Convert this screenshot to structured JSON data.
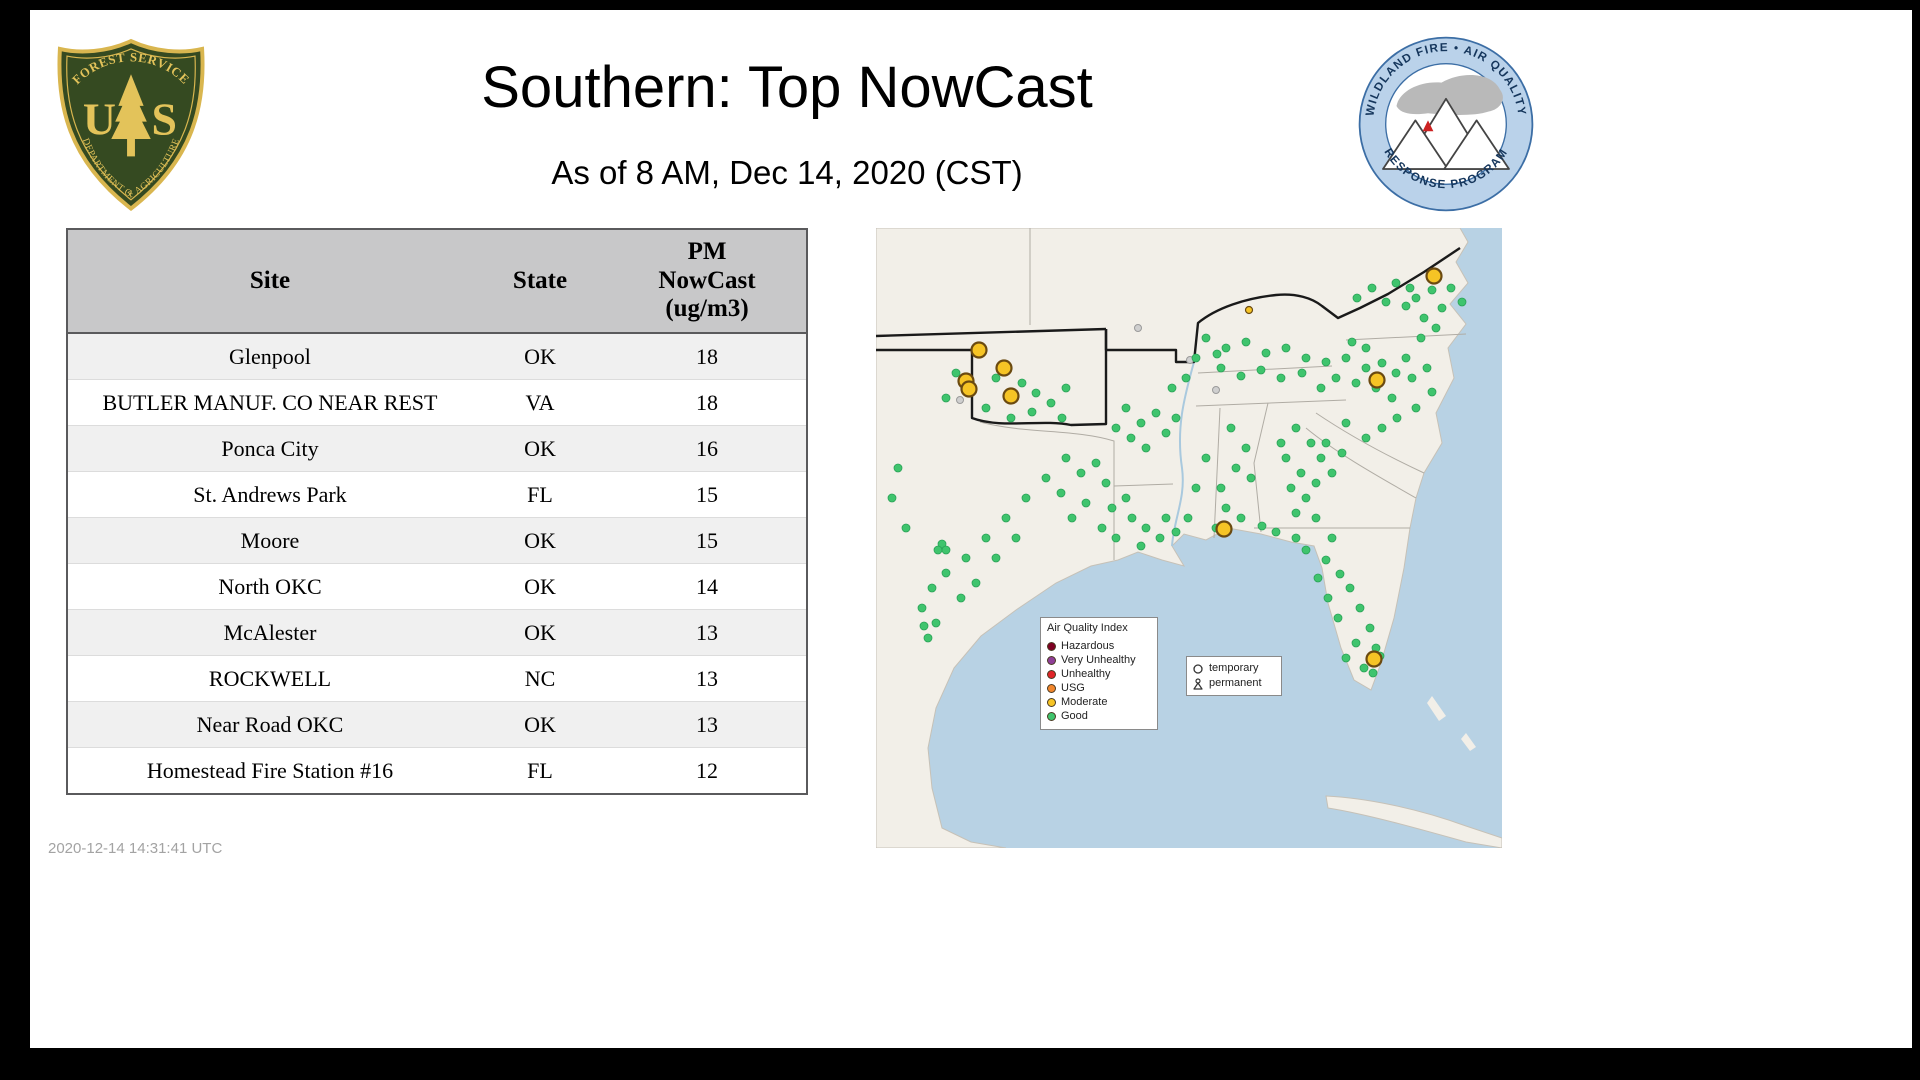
{
  "header": {
    "title": "Southern: Top NowCast",
    "subtitle": "As of  8 AM, Dec 14, 2020 (CST)"
  },
  "logos": {
    "forest_service": {
      "arc_top": "FOREST SERVICE",
      "letter_u": "U",
      "letter_s": "S",
      "arc_bottom": "DEPARTMENT OF AGRICULTURE"
    },
    "wfaqrp": {
      "arc_top": "WILDLAND FIRE • AIR QUALITY",
      "arc_bottom": "RESPONSE PROGRAM"
    }
  },
  "table": {
    "columns": [
      "Site",
      "State",
      "PM\nNowCast\n(ug/m3)"
    ],
    "rows": [
      {
        "site": "Glenpool",
        "state": "OK",
        "value": "18"
      },
      {
        "site": "BUTLER MANUF. CO NEAR REST",
        "state": "VA",
        "value": "18"
      },
      {
        "site": "Ponca City",
        "state": "OK",
        "value": "16"
      },
      {
        "site": "St. Andrews Park",
        "state": "FL",
        "value": "15"
      },
      {
        "site": "Moore",
        "state": "OK",
        "value": "15"
      },
      {
        "site": "North OKC",
        "state": "OK",
        "value": "14"
      },
      {
        "site": "McAlester",
        "state": "OK",
        "value": "13"
      },
      {
        "site": "ROCKWELL",
        "state": "NC",
        "value": "13"
      },
      {
        "site": "Near Road OKC",
        "state": "OK",
        "value": "13"
      },
      {
        "site": "Homestead Fire Station #16",
        "state": "FL",
        "value": "12"
      }
    ]
  },
  "map": {
    "legend": {
      "title": "Air Quality Index",
      "items": [
        {
          "label": "Hazardous",
          "color": "#7e0023"
        },
        {
          "label": "Very Unhealthy",
          "color": "#8f3f97"
        },
        {
          "label": "Unhealthy",
          "color": "#e02428"
        },
        {
          "label": "USG",
          "color": "#f2862c"
        },
        {
          "label": "Moderate",
          "color": "#f6c425"
        },
        {
          "label": "Good",
          "color": "#3fc46d"
        }
      ]
    },
    "marker_legend": {
      "temporary_label": "temporary",
      "permanent_label": "permanent"
    },
    "dot_colors": {
      "good": "#3fc46d",
      "moderate": "#f6c425",
      "inactive": "#cfcfcf"
    },
    "green_dots": [
      [
        520,
        55
      ],
      [
        540,
        70
      ],
      [
        556,
        62
      ],
      [
        566,
        80
      ],
      [
        548,
        90
      ],
      [
        530,
        78
      ],
      [
        575,
        60
      ],
      [
        586,
        74
      ],
      [
        510,
        74
      ],
      [
        496,
        60
      ],
      [
        481,
        70
      ],
      [
        560,
        100
      ],
      [
        545,
        110
      ],
      [
        534,
        60
      ],
      [
        470,
        130
      ],
      [
        490,
        140
      ],
      [
        506,
        135
      ],
      [
        520,
        145
      ],
      [
        536,
        150
      ],
      [
        480,
        155
      ],
      [
        500,
        160
      ],
      [
        516,
        170
      ],
      [
        460,
        150
      ],
      [
        445,
        160
      ],
      [
        530,
        130
      ],
      [
        551,
        140
      ],
      [
        490,
        120
      ],
      [
        476,
        114
      ],
      [
        556,
        164
      ],
      [
        540,
        180
      ],
      [
        521,
        190
      ],
      [
        506,
        200
      ],
      [
        490,
        210
      ],
      [
        470,
        195
      ],
      [
        330,
        110
      ],
      [
        350,
        120
      ],
      [
        370,
        114
      ],
      [
        390,
        125
      ],
      [
        410,
        120
      ],
      [
        430,
        130
      ],
      [
        345,
        140
      ],
      [
        365,
        148
      ],
      [
        385,
        142
      ],
      [
        405,
        150
      ],
      [
        426,
        145
      ],
      [
        310,
        150
      ],
      [
        296,
        160
      ],
      [
        450,
        134
      ],
      [
        320,
        130
      ],
      [
        341,
        126
      ],
      [
        420,
        200
      ],
      [
        435,
        215
      ],
      [
        445,
        230
      ],
      [
        425,
        245
      ],
      [
        410,
        230
      ],
      [
        440,
        255
      ],
      [
        456,
        245
      ],
      [
        430,
        270
      ],
      [
        415,
        260
      ],
      [
        450,
        215
      ],
      [
        466,
        225
      ],
      [
        405,
        215
      ],
      [
        420,
        285
      ],
      [
        440,
        290
      ],
      [
        355,
        200
      ],
      [
        370,
        220
      ],
      [
        360,
        240
      ],
      [
        345,
        260
      ],
      [
        375,
        250
      ],
      [
        350,
        280
      ],
      [
        365,
        290
      ],
      [
        330,
        230
      ],
      [
        320,
        260
      ],
      [
        340,
        300
      ],
      [
        312,
        290
      ],
      [
        430,
        322
      ],
      [
        450,
        332
      ],
      [
        464,
        346
      ],
      [
        474,
        360
      ],
      [
        484,
        380
      ],
      [
        494,
        400
      ],
      [
        500,
        420
      ],
      [
        480,
        415
      ],
      [
        462,
        390
      ],
      [
        452,
        370
      ],
      [
        442,
        350
      ],
      [
        470,
        430
      ],
      [
        488,
        440
      ],
      [
        456,
        310
      ],
      [
        420,
        310
      ],
      [
        400,
        304
      ],
      [
        386,
        298
      ],
      [
        504,
        428
      ],
      [
        497,
        445
      ],
      [
        256,
        290
      ],
      [
        270,
        300
      ],
      [
        284,
        310
      ],
      [
        300,
        304
      ],
      [
        265,
        318
      ],
      [
        240,
        310
      ],
      [
        226,
        300
      ],
      [
        290,
        290
      ],
      [
        250,
        270
      ],
      [
        236,
        280
      ],
      [
        250,
        180
      ],
      [
        265,
        195
      ],
      [
        280,
        185
      ],
      [
        255,
        210
      ],
      [
        270,
        220
      ],
      [
        240,
        200
      ],
      [
        290,
        205
      ],
      [
        300,
        190
      ],
      [
        80,
        145
      ],
      [
        120,
        150
      ],
      [
        146,
        155
      ],
      [
        160,
        165
      ],
      [
        110,
        180
      ],
      [
        135,
        190
      ],
      [
        156,
        184
      ],
      [
        175,
        175
      ],
      [
        190,
        160
      ],
      [
        95,
        160
      ],
      [
        70,
        170
      ],
      [
        186,
        190
      ],
      [
        190,
        230
      ],
      [
        205,
        245
      ],
      [
        185,
        265
      ],
      [
        210,
        275
      ],
      [
        196,
        290
      ],
      [
        170,
        250
      ],
      [
        150,
        270
      ],
      [
        130,
        290
      ],
      [
        110,
        310
      ],
      [
        90,
        330
      ],
      [
        70,
        345
      ],
      [
        56,
        360
      ],
      [
        46,
        380
      ],
      [
        60,
        395
      ],
      [
        66,
        316
      ],
      [
        62,
        322
      ],
      [
        70,
        322
      ],
      [
        100,
        355
      ],
      [
        85,
        370
      ],
      [
        120,
        330
      ],
      [
        140,
        310
      ],
      [
        48,
        398
      ],
      [
        52,
        410
      ],
      [
        230,
        255
      ],
      [
        220,
        235
      ],
      [
        22,
        240
      ],
      [
        16,
        270
      ],
      [
        30,
        300
      ]
    ],
    "yellow_dots": [
      [
        103,
        122
      ],
      [
        90,
        153
      ],
      [
        93,
        161
      ],
      [
        128,
        140
      ],
      [
        135,
        168
      ],
      [
        348,
        301
      ],
      [
        501,
        152
      ],
      [
        558,
        48
      ],
      [
        498,
        431
      ]
    ],
    "yellow_small_dots": [
      [
        373,
        82
      ]
    ],
    "gray_dots": [
      [
        314,
        132
      ],
      [
        84,
        172
      ],
      [
        262,
        100
      ],
      [
        340,
        162
      ]
    ]
  },
  "footer": {
    "timestamp": "2020-12-14 14:31:41 UTC"
  }
}
